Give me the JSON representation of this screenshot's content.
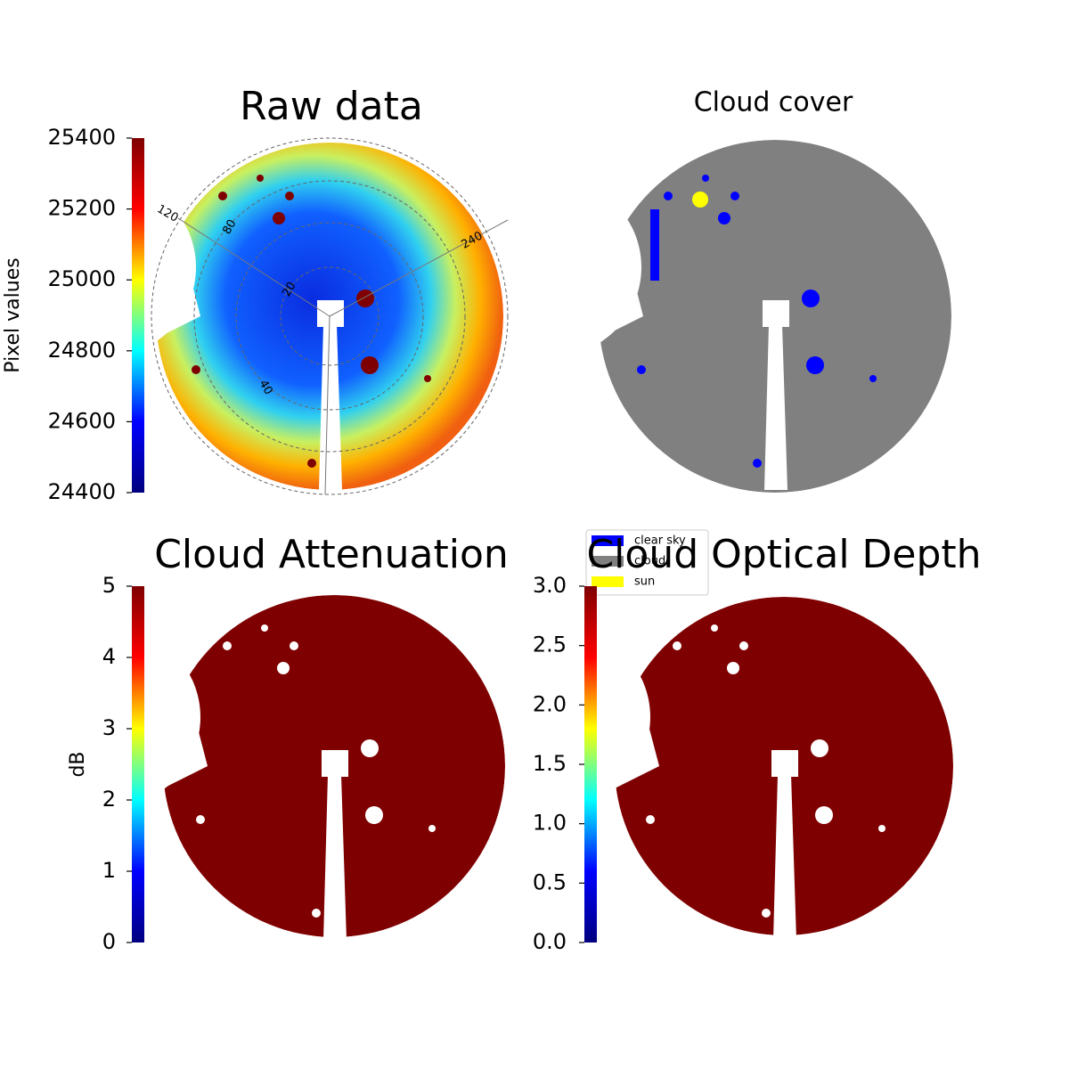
{
  "chart_data": [
    {
      "type": "image",
      "title": "Raw data",
      "ylabel": "Pixel values",
      "ylim": [
        24400,
        25400
      ],
      "yticks": [
        24400,
        24600,
        24800,
        25000,
        25200,
        25400
      ],
      "colormap": [
        "#00007f",
        "#0000ff",
        "#00ffff",
        "#ffff00",
        "#ff0000",
        "#7f0000"
      ],
      "annotations": [
        "120",
        "80",
        "240",
        "20",
        "40"
      ]
    },
    {
      "type": "image",
      "title": "Cloud cover",
      "series": [
        {
          "name": "clear sky",
          "color": "#0000ff"
        },
        {
          "name": "cloud",
          "color": "#808080"
        },
        {
          "name": "sun",
          "color": "#ffff00"
        }
      ],
      "legend": "lower left"
    },
    {
      "type": "image",
      "title": "Cloud Attenuation",
      "ylabel": "dB",
      "ylim": [
        0,
        5
      ],
      "yticks": [
        0,
        1,
        2,
        3,
        4,
        5
      ],
      "colormap": [
        "#00007f",
        "#0000ff",
        "#00ffff",
        "#ffff00",
        "#ff0000",
        "#7f0000"
      ]
    },
    {
      "type": "image",
      "title": "Cloud Optical Depth",
      "ylim": [
        0,
        3
      ],
      "yticks": [
        {
          "value": 0,
          "label": "0.0"
        },
        0.5,
        {
          "value": 1,
          "label": "1.0"
        },
        1.5,
        {
          "value": 2,
          "label": "2.0"
        },
        2.5,
        {
          "value": 3,
          "label": "3.0"
        }
      ],
      "colormap": [
        "#00007f",
        "#0000ff",
        "#00ffff",
        "#ffff00",
        "#ff0000",
        "#7f0000"
      ]
    }
  ]
}
